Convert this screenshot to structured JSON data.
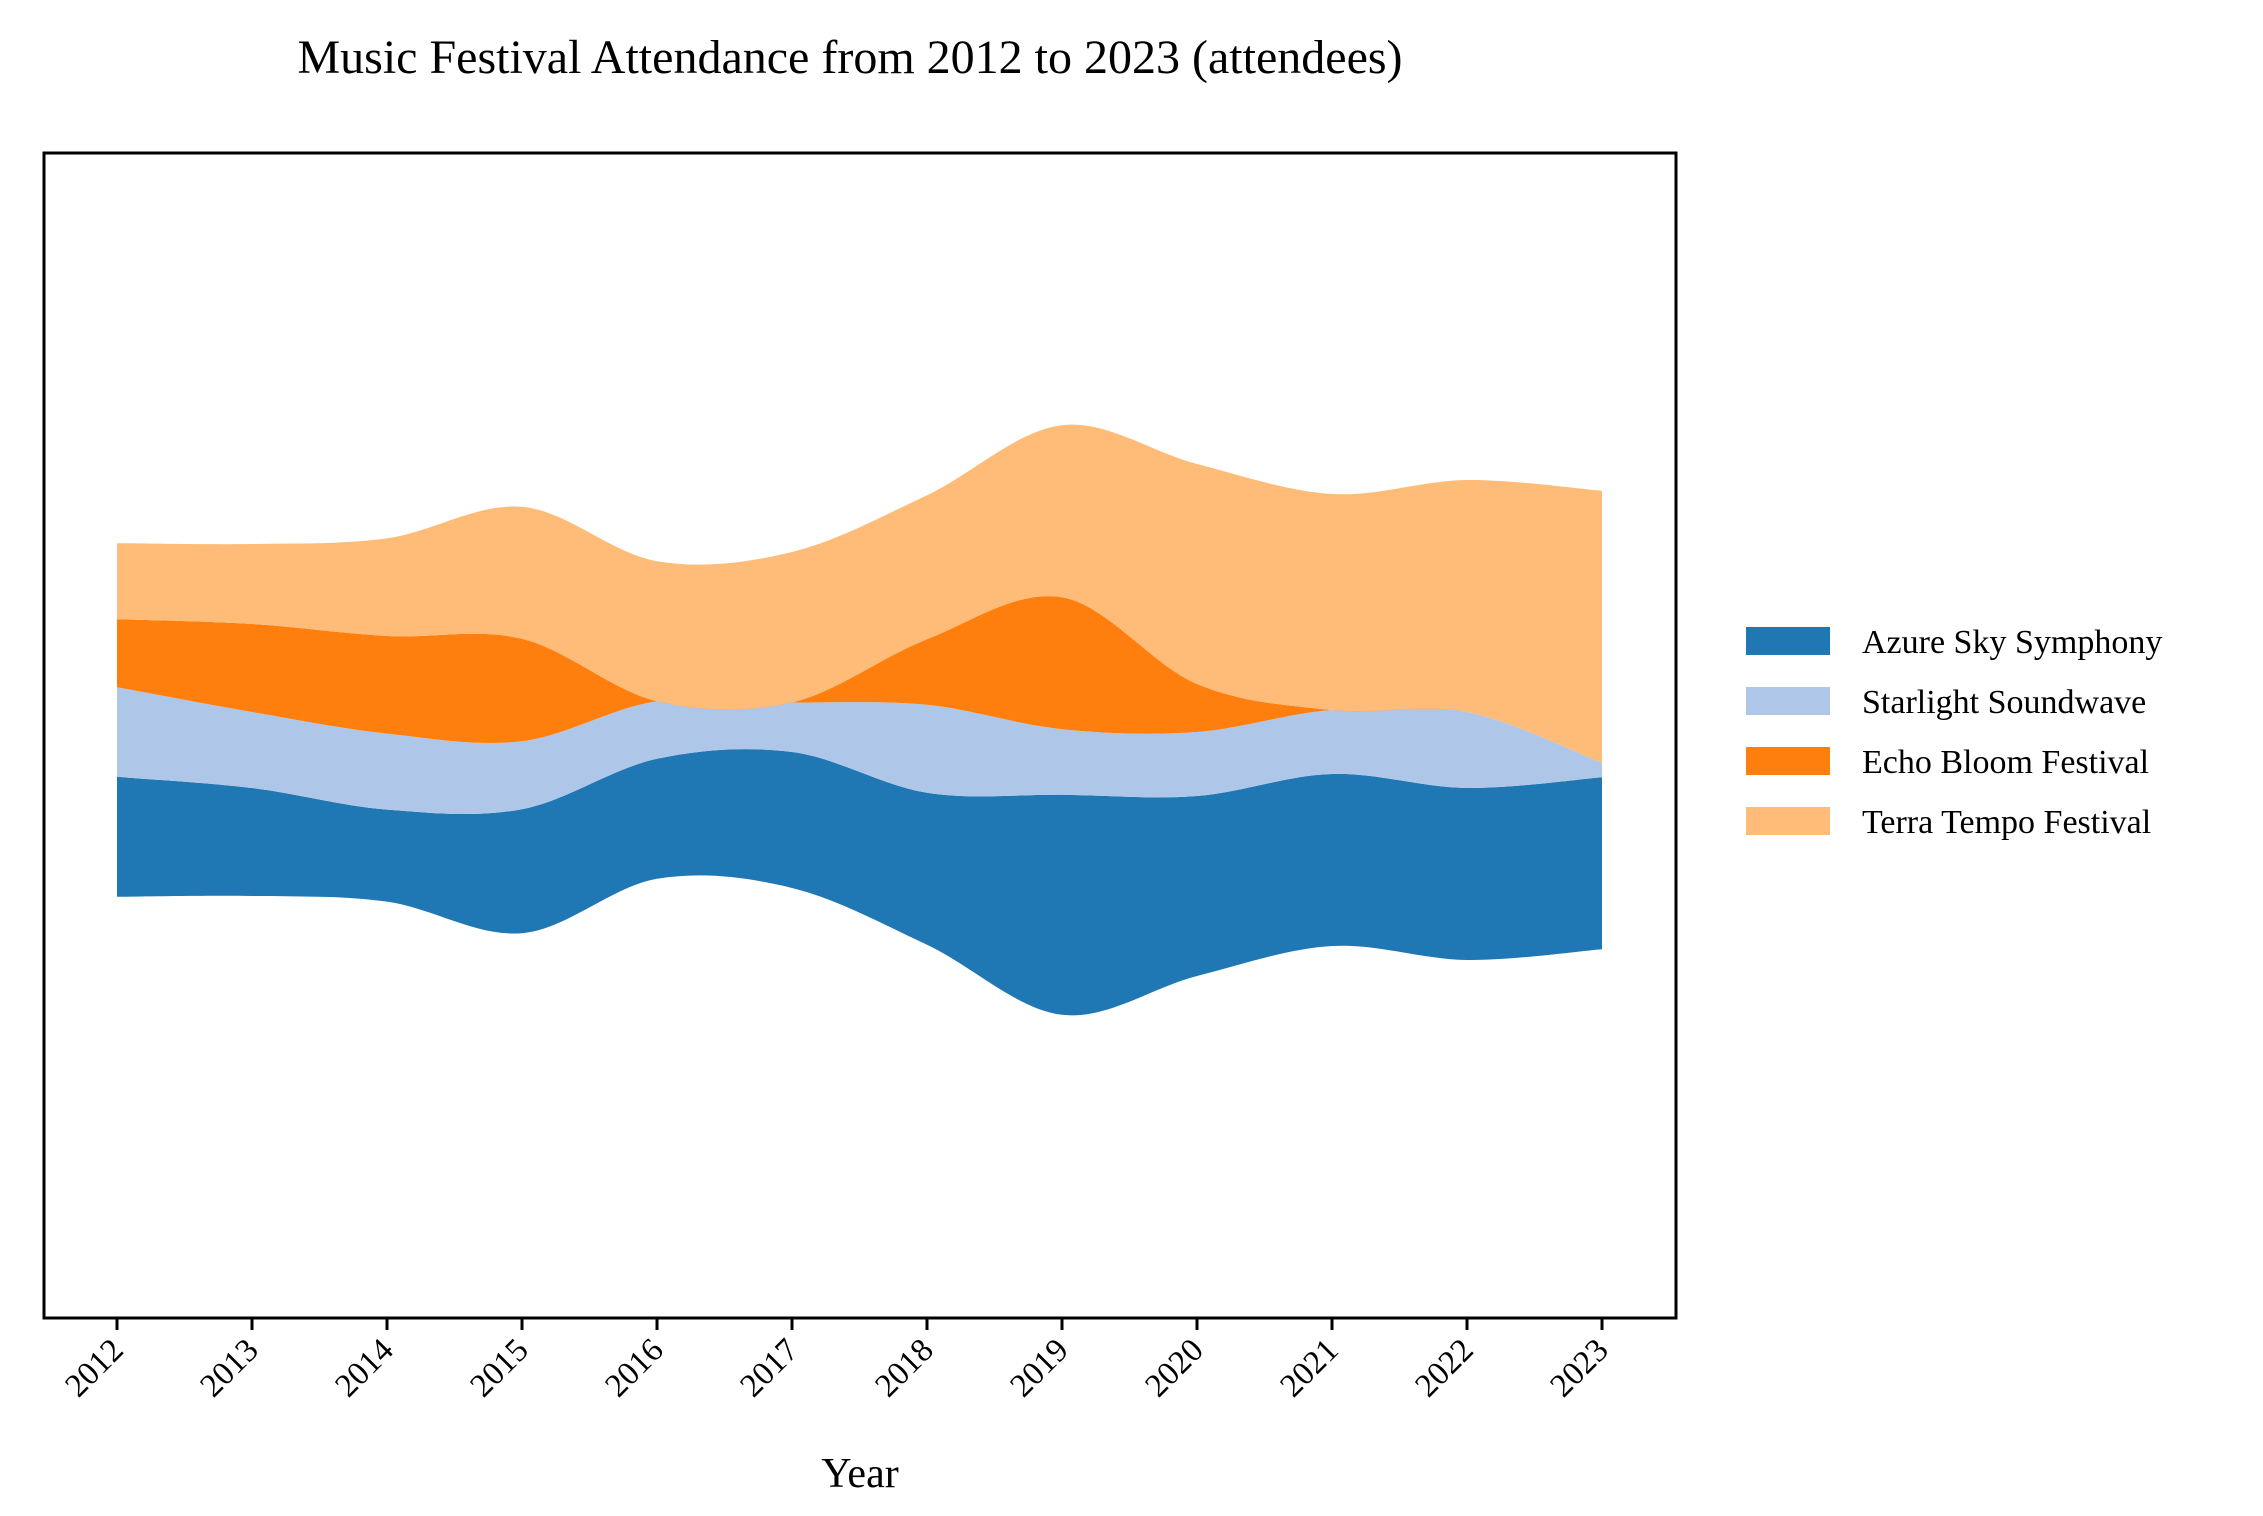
{
  "chart_data": {
    "type": "area",
    "title": "Music Festival Attendance from 2012 to 2023 (attendees)",
    "xlabel": "Year",
    "ylabel": "",
    "baseline": "symmetric",
    "categories": [
      "2012",
      "2013",
      "2014",
      "2015",
      "2016",
      "2017",
      "2018",
      "2019",
      "2020",
      "2021",
      "2022",
      "2023"
    ],
    "series": [
      {
        "name": "Azure Sky Symphony",
        "color": "#1f77b4",
        "values": [
          150,
          135,
          115,
          155,
          150,
          170,
          190,
          275,
          225,
          215,
          215,
          215
        ]
      },
      {
        "name": "Starlight Soundwave",
        "color": "#aec7e8",
        "values": [
          112,
          95,
          95,
          85,
          72,
          62,
          110,
          82,
          80,
          80,
          95,
          18
        ]
      },
      {
        "name": "Echo Bloom Festival",
        "color": "#ff7f0e",
        "values": [
          85,
          110,
          122,
          128,
          0,
          0,
          82,
          165,
          60,
          0,
          0,
          0
        ]
      },
      {
        "name": "Terra Tempo Festival",
        "color": "#ffbb78",
        "values": [
          95,
          100,
          122,
          165,
          175,
          188,
          180,
          215,
          275,
          270,
          290,
          340
        ]
      }
    ],
    "legend": "right",
    "grid": false
  }
}
